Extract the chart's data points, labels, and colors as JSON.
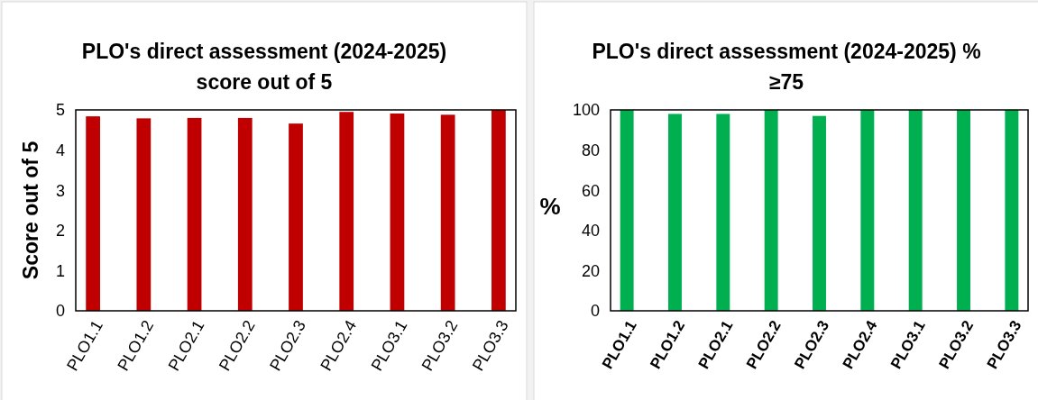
{
  "chart_data": [
    {
      "type": "bar",
      "title": "PLO's direct assessment (2024-2025) score out of 5",
      "ylabel": "Score out of 5",
      "categories": [
        "PLO1.1",
        "PLO1.2",
        "PLO2.1",
        "PLO2.2",
        "PLO2.3",
        "PLO2.4",
        "PLO3.1",
        "PLO3.2",
        "PLO3.3"
      ],
      "values": [
        4.84,
        4.79,
        4.8,
        4.8,
        4.66,
        4.95,
        4.91,
        4.88,
        5.0
      ],
      "color": "#c00000",
      "ylim": [
        0,
        5
      ],
      "yticks": [
        0,
        1,
        2,
        3,
        4,
        5
      ],
      "grid": false,
      "legend": false
    },
    {
      "type": "bar",
      "title": "PLO's direct assessment (2024-2025) % ≥75",
      "ylabel": "%",
      "categories": [
        "PLO1.1",
        "PLO1.2",
        "PLO2.1",
        "PLO2.2",
        "PLO2.3",
        "PLO2.4",
        "PLO3.1",
        "PLO3.2",
        "PLO3.3"
      ],
      "values": [
        100,
        98,
        98,
        100,
        97,
        100,
        100,
        100,
        100
      ],
      "color": "#00b050",
      "ylim": [
        0,
        100
      ],
      "yticks": [
        0,
        20,
        40,
        60,
        80,
        100
      ],
      "grid": false,
      "legend": false
    }
  ]
}
